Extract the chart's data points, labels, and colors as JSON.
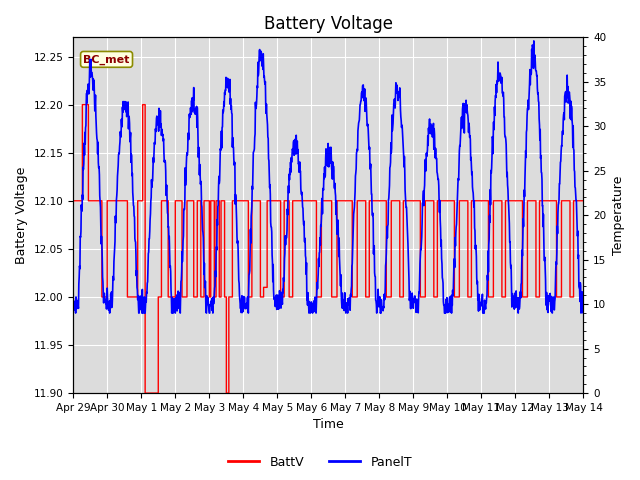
{
  "title": "Battery Voltage",
  "xlabel": "Time",
  "ylabel_left": "Battery Voltage",
  "ylabel_right": "Temperature",
  "annotation_text": "BC_met",
  "ylim_left": [
    11.9,
    12.27
  ],
  "ylim_right": [
    0,
    40
  ],
  "yticks_left": [
    11.9,
    11.95,
    12.0,
    12.05,
    12.1,
    12.15,
    12.2,
    12.25
  ],
  "yticks_right": [
    0,
    5,
    10,
    15,
    20,
    25,
    30,
    35,
    40
  ],
  "xtick_positions": [
    0,
    1,
    2,
    3,
    4,
    5,
    6,
    7,
    8,
    9,
    10,
    11,
    12,
    13,
    14,
    15
  ],
  "xtick_labels": [
    "Apr 29",
    "Apr 30",
    "May 1",
    "May 2",
    "May 3",
    "May 4",
    "May 5",
    "May 6",
    "May 7",
    "May 8",
    "May 9",
    "May 10",
    "May 11",
    "May 12",
    "May 13",
    "May 14"
  ],
  "batt_color": "#FF0000",
  "panel_color": "#0000FF",
  "bg_inner": "#DCDCDC",
  "legend_batt": "BattV",
  "legend_panel": "PanelT",
  "title_fontsize": 12,
  "axis_label_fontsize": 9,
  "tick_fontsize": 7.5,
  "figsize": [
    6.4,
    4.8
  ],
  "dpi": 100
}
